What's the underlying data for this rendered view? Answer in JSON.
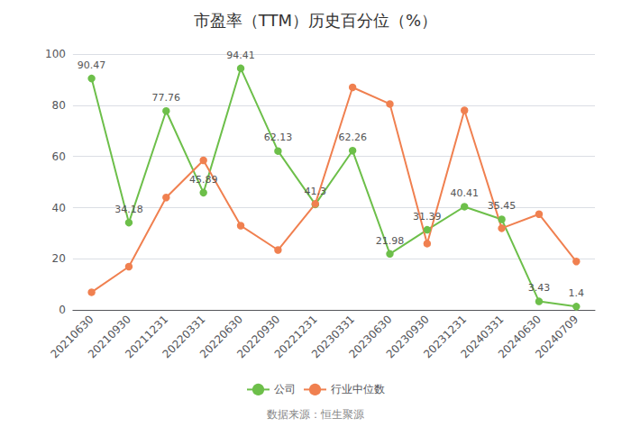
{
  "chart_data": {
    "type": "line",
    "title": "市盈率（TTM）历史百分位（%）",
    "categories": [
      "20210630",
      "20210930",
      "20211231",
      "20220331",
      "20220630",
      "20220930",
      "20221231",
      "20230331",
      "20230630",
      "20230930",
      "20231231",
      "20240331",
      "20240630",
      "20240709"
    ],
    "series": [
      {
        "name": "公司",
        "color": "#6dbf4a",
        "marker": "circle",
        "data_labels": true,
        "values": [
          90.47,
          34.18,
          77.76,
          45.89,
          94.41,
          62.13,
          41.3,
          62.26,
          21.98,
          31.39,
          40.41,
          35.45,
          3.43,
          1.4
        ]
      },
      {
        "name": "行业中位数",
        "color": "#f08050",
        "marker": "circle",
        "values": [
          7.0,
          17.0,
          44.0,
          58.5,
          33.0,
          23.5,
          41.5,
          87.0,
          80.5,
          26.0,
          78.0,
          32.0,
          37.5,
          19.0
        ]
      }
    ],
    "ylim": [
      0,
      100
    ],
    "yticks": [
      0,
      20,
      40,
      60,
      80,
      100
    ],
    "grid": true,
    "legend": "bottom",
    "footer": "数据来源：恒生聚源"
  }
}
